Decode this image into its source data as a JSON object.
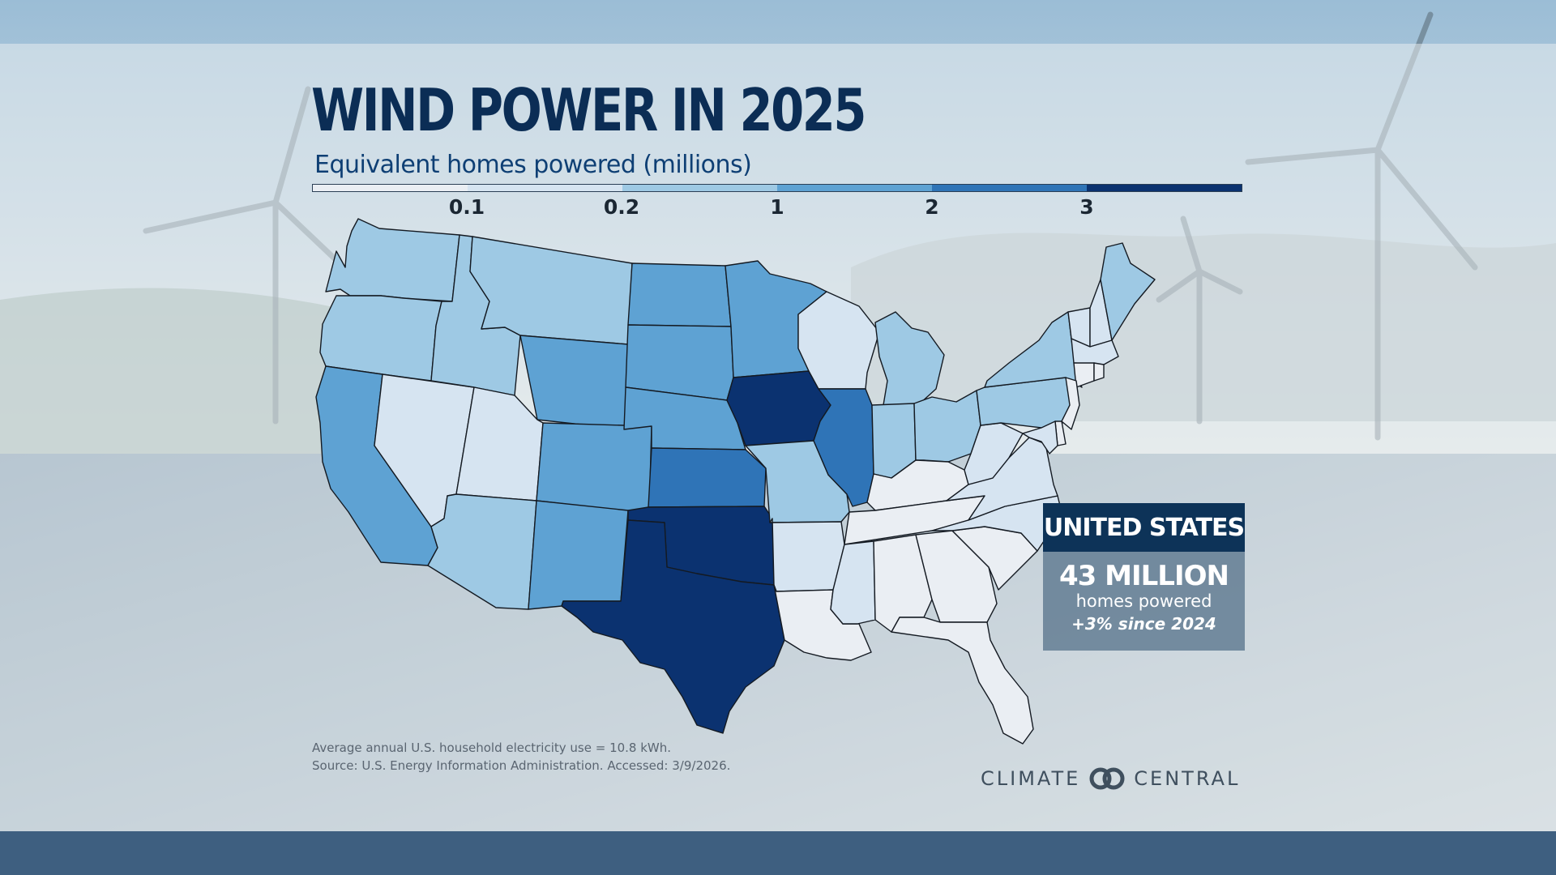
{
  "title": "WIND POWER IN 2025",
  "subtitle": "Equivalent homes powered (millions)",
  "legend": {
    "ticks": [
      "0.1",
      "0.2",
      "1",
      "2",
      "3"
    ],
    "colors": [
      "#eaeef3",
      "#d6e4f1",
      "#9ec9e4",
      "#5ea2d3",
      "#2f74b7",
      "#0b3270"
    ]
  },
  "summary": {
    "heading": "UNITED STATES",
    "value": "43 MILLION",
    "unit": "homes powered",
    "change": "+3% since 2024"
  },
  "notes": {
    "line1": "Average annual U.S. household electricity use = 10.8 kWh.",
    "line2": "Source: U.S. Energy Information Administration. Accessed: 3/9/2026."
  },
  "logo": {
    "left": "CLIMATE",
    "right": "CENTRAL"
  },
  "states": {
    "WA": 2,
    "OR": 2,
    "CA": 3,
    "NV": 1,
    "ID": 2,
    "MT": 2,
    "WY": 3,
    "UT": 1,
    "AZ": 2,
    "CO": 3,
    "NM": 3,
    "ND": 3,
    "SD": 3,
    "NE": 3,
    "KS": 4,
    "OK": 5,
    "TX": 5,
    "MN": 3,
    "IA": 5,
    "MO": 2,
    "AR": 1,
    "LA": 0,
    "WI": 1,
    "IL": 4,
    "MI": 2,
    "IN": 2,
    "OH": 2,
    "KY": 0,
    "TN": 0,
    "MS": 1,
    "AL": 0,
    "GA": 0,
    "FL": 0,
    "SC": 0,
    "NC": 1,
    "VA": 1,
    "WV": 1,
    "PA": 2,
    "NY": 2,
    "VT": 1,
    "NH": 1,
    "ME": 2,
    "MA": 1,
    "CT": 0,
    "RI": 0,
    "NJ": 0,
    "DE": 0,
    "MD": 1
  }
}
